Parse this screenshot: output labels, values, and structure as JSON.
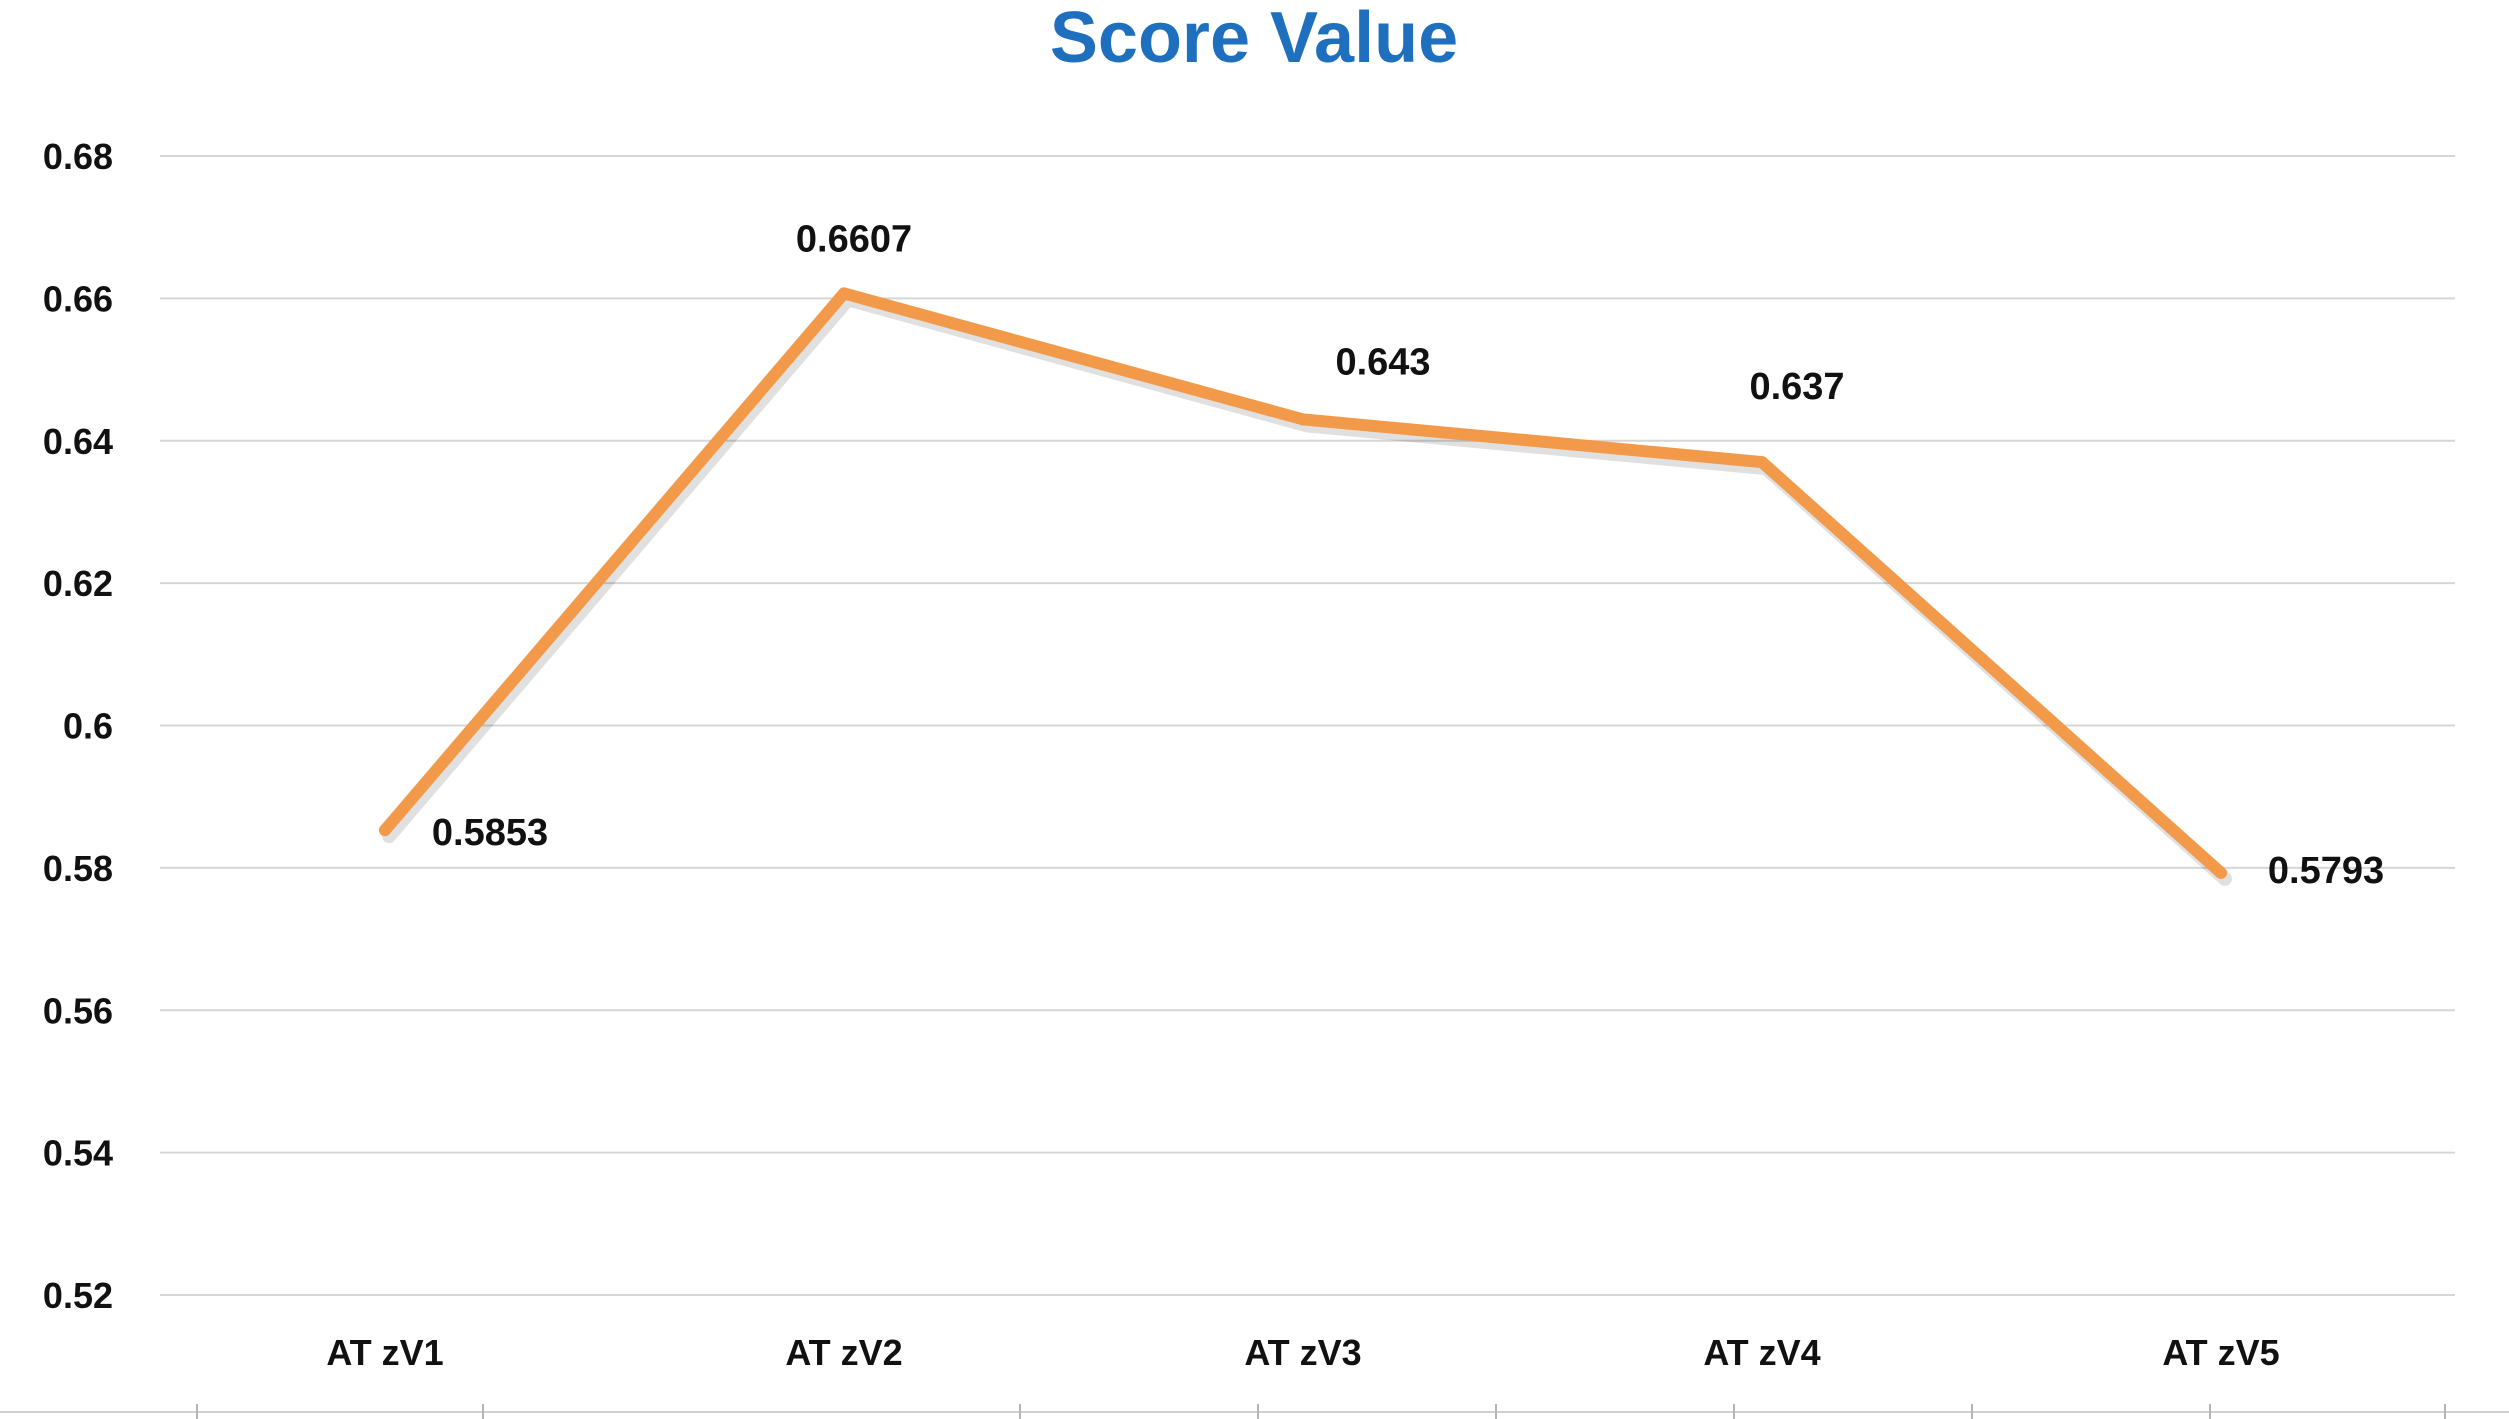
{
  "chart_data": {
    "type": "line",
    "title": "Score Value",
    "xlabel": "",
    "ylabel": "",
    "categories": [
      "AT zV1",
      "AT zV2",
      "AT zV3",
      "AT zV4",
      "AT zV5"
    ],
    "series": [
      {
        "values": [
          0.5853,
          0.6607,
          0.643,
          0.637,
          0.5793
        ],
        "data_labels": [
          "0.5853",
          "0.6607",
          "0.643",
          "0.637",
          "0.5793"
        ]
      }
    ],
    "ylim": [
      0.52,
      0.68
    ],
    "y_ticks": [
      "0.52",
      "0.54",
      "0.56",
      "0.58",
      "0.6",
      "0.62",
      "0.64",
      "0.66",
      "0.68"
    ],
    "grid": true,
    "legend": "none",
    "colors": {
      "title": "#1f6fbf",
      "line": "#f39a4a",
      "grid": "#d6d6d6",
      "text": "#111111"
    }
  }
}
